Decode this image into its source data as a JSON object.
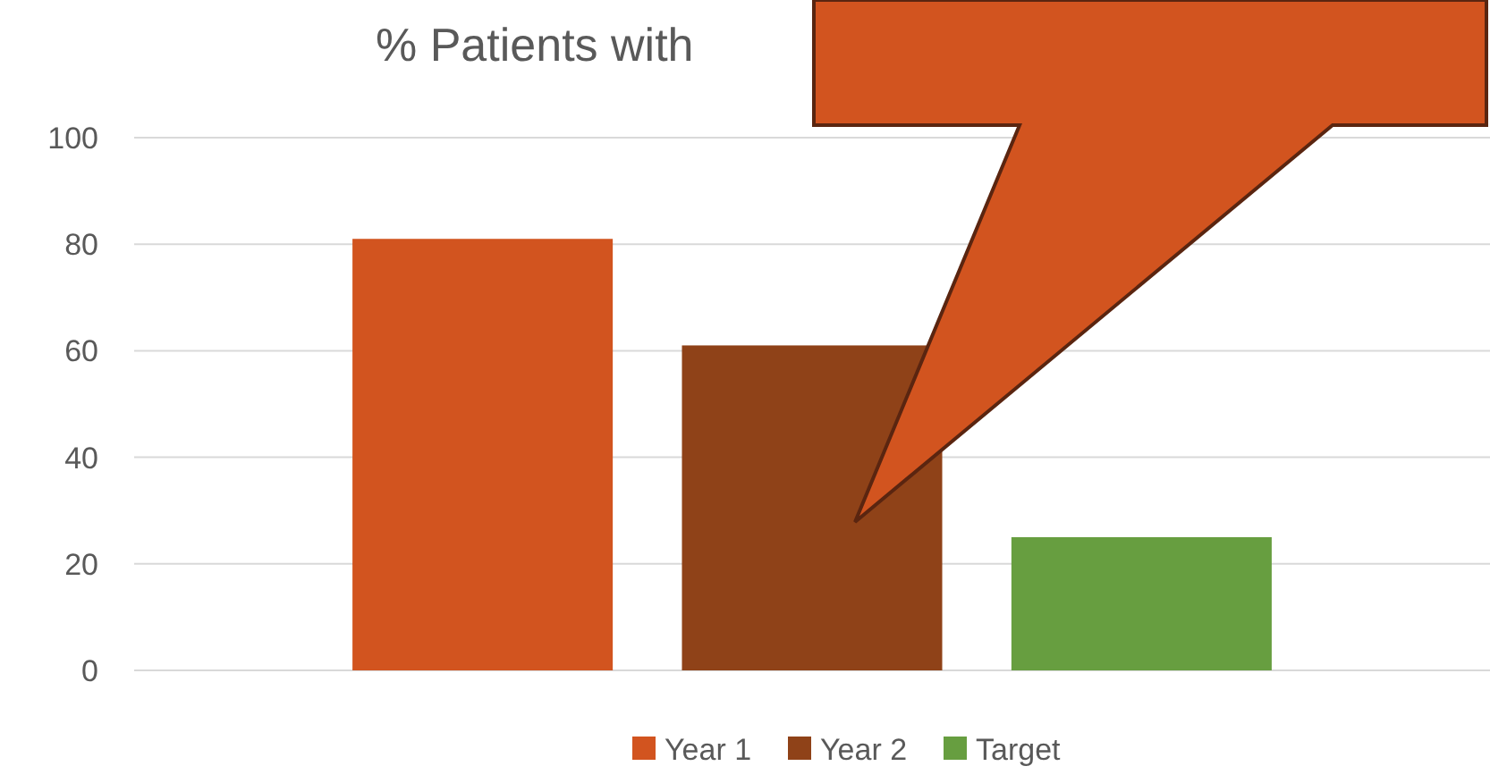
{
  "chart_data": {
    "type": "bar",
    "title": "% Patients with",
    "categories": [
      null
    ],
    "series": [
      {
        "name": "Year 1",
        "color": "#d2541f",
        "values": [
          81
        ]
      },
      {
        "name": "Year 2",
        "color": "#8f4218",
        "values": [
          61
        ]
      },
      {
        "name": "Target",
        "color": "#679e40",
        "values": [
          25
        ]
      }
    ],
    "ylim": [
      0,
      100
    ],
    "yticks": [
      0,
      20,
      40,
      60,
      80,
      100
    ],
    "grid": "y",
    "legend": "bottom"
  }
}
